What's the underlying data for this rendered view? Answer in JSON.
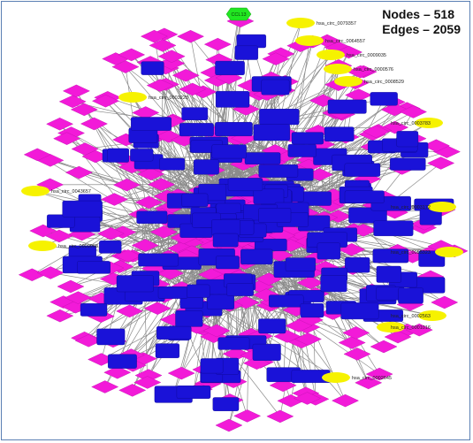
{
  "stats": {
    "nodes_label": "Nodes – 518",
    "edges_label": "Edges – 2059"
  },
  "legend_colors": {
    "gene": "#1a12d8",
    "mirna": "#f21ad8",
    "circrna": "#f6f200",
    "hub": "#22e622",
    "edge": "#8c8c8c"
  },
  "node_counts": {
    "total": 518,
    "edges": 2059
  },
  "hub_node": {
    "label": "CCL13"
  },
  "circ_nodes": [
    "hsa_circ_0079357",
    "hsa_circ_0064557",
    "hsa_circ_0009035",
    "hsa_circ_0000576",
    "hsa_circ_0008529",
    "hsa_circ_0003783",
    "hsa_circ_0003228",
    "hsa_circ_0043657",
    "hsa_circ_0003172",
    "hsa_circ_0009068",
    "hsa_circ_0055323",
    "hsa_circ_0002563",
    "hsa_circ_0001016",
    "hsa_circ_0002645"
  ]
}
